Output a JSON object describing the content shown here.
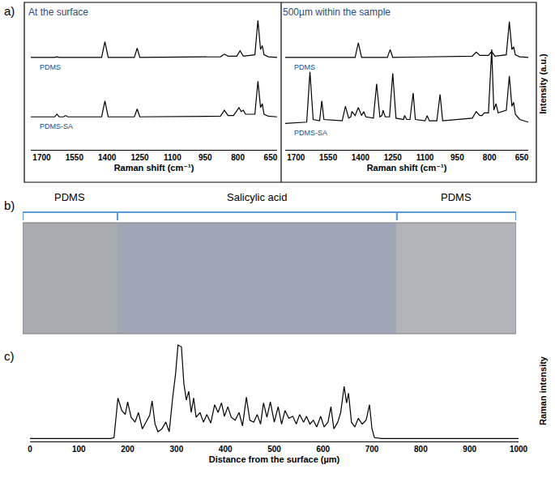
{
  "chart_data": [
    {
      "type": "line",
      "annotations": [
        "a)"
      ],
      "title": "At the surface",
      "x_label": "Raman shift (cm⁻¹)",
      "xlim": [
        1750,
        620
      ],
      "xticks": [
        1700,
        1550,
        1400,
        1250,
        1100,
        950,
        800,
        650
      ],
      "ylim": [
        0,
        10
      ],
      "tick_labels": "x",
      "grid": false,
      "series": [
        {
          "name": "PDMS",
          "color": "#000000",
          "x": [
            1750,
            1640,
            1630,
            1620,
            1425,
            1410,
            1395,
            1275,
            1262,
            1250,
            880,
            862,
            845,
            805,
            790,
            775,
            722,
            708,
            696,
            688,
            680,
            660,
            620
          ],
          "values": [
            7.0,
            7.0,
            7.05,
            7.0,
            7.0,
            8.2,
            7.0,
            7.0,
            7.7,
            7.0,
            7.05,
            7.25,
            7.1,
            7.1,
            7.5,
            7.1,
            7.2,
            9.8,
            7.6,
            7.9,
            7.2,
            7.05,
            7.0
          ]
        },
        {
          "name": "PDMS-SA",
          "color": "#000000",
          "x": [
            1750,
            1640,
            1630,
            1620,
            1600,
            1590,
            1580,
            1425,
            1410,
            1395,
            1275,
            1262,
            1250,
            880,
            862,
            845,
            820,
            805,
            795,
            785,
            775,
            765,
            722,
            708,
            696,
            688,
            680,
            660,
            620
          ],
          "values": [
            2.5,
            2.5,
            2.7,
            2.5,
            2.5,
            2.6,
            2.5,
            2.5,
            3.7,
            2.5,
            2.5,
            3.1,
            2.5,
            2.55,
            3.0,
            2.6,
            2.6,
            3.0,
            3.2,
            2.9,
            3.0,
            2.7,
            2.7,
            5.2,
            3.2,
            3.5,
            2.7,
            2.55,
            2.5
          ]
        }
      ]
    },
    {
      "type": "line",
      "title": "500µm within the sample",
      "x_label": "Raman shift (cm⁻¹)",
      "y_label": "Intensity (a.u.)",
      "xlim": [
        1750,
        620
      ],
      "xticks": [
        1700,
        1550,
        1400,
        1250,
        1100,
        950,
        800,
        650
      ],
      "ylim": [
        0,
        10
      ],
      "tick_labels": "x",
      "grid": false,
      "series": [
        {
          "name": "PDMS",
          "color": "#000000",
          "x": [
            1750,
            1640,
            1630,
            1620,
            1425,
            1410,
            1395,
            1275,
            1262,
            1250,
            880,
            862,
            845,
            805,
            790,
            775,
            722,
            708,
            696,
            688,
            680,
            660,
            620
          ],
          "values": [
            7.0,
            7.0,
            7.0,
            7.0,
            7.0,
            8.1,
            7.0,
            7.0,
            7.6,
            7.0,
            7.1,
            7.4,
            7.15,
            7.15,
            7.45,
            7.1,
            7.2,
            9.7,
            7.6,
            7.8,
            7.2,
            7.05,
            7.0
          ]
        },
        {
          "name": "PDMS-SA",
          "color": "#000000",
          "x": [
            1750,
            1650,
            1635,
            1620,
            1590,
            1580,
            1570,
            1485,
            1470,
            1455,
            1445,
            1440,
            1425,
            1410,
            1395,
            1385,
            1375,
            1340,
            1325,
            1310,
            1300,
            1295,
            1285,
            1265,
            1250,
            1235,
            1200,
            1195,
            1185,
            1170,
            1155,
            1145,
            1100,
            1090,
            1080,
            1045,
            1030,
            1018,
            880,
            862,
            845,
            835,
            825,
            805,
            790,
            780,
            770,
            760,
            722,
            708,
            696,
            688,
            680,
            660,
            620
          ],
          "values": [
            2.0,
            2.1,
            5.9,
            2.3,
            2.2,
            3.7,
            2.3,
            2.2,
            3.3,
            2.4,
            2.5,
            2.9,
            2.6,
            3.2,
            2.6,
            2.9,
            2.5,
            2.4,
            5.0,
            2.5,
            2.6,
            3.0,
            2.5,
            2.5,
            5.8,
            2.4,
            2.3,
            2.6,
            2.3,
            2.3,
            4.3,
            2.3,
            2.2,
            2.6,
            2.2,
            2.2,
            4.2,
            2.2,
            2.4,
            2.9,
            2.6,
            2.6,
            2.8,
            2.8,
            7.6,
            3.0,
            3.5,
            2.8,
            3.0,
            5.6,
            3.3,
            3.6,
            2.7,
            2.3,
            2.1
          ]
        }
      ]
    },
    {
      "type": "image_bands",
      "annotations": [
        "b)"
      ],
      "xlim": [
        -15,
        995
      ],
      "tick_labels": false,
      "bands": [
        {
          "label": "PDMS",
          "start": -15,
          "end": 179,
          "color": "#a9abb0"
        },
        {
          "label": "Salicylic acid",
          "start": 179,
          "end": 751,
          "color": "#9fa6b6"
        },
        {
          "label": "PDMS",
          "start": 751,
          "end": 995,
          "color": "#b2b4b9"
        }
      ]
    },
    {
      "type": "line",
      "annotations": [
        "c)"
      ],
      "x_label": "Distance from the surface (µm)",
      "y_label": "Raman intensity",
      "xlim": [
        0,
        1000
      ],
      "xticks": [
        0,
        100,
        200,
        300,
        400,
        500,
        600,
        700,
        800,
        900,
        1000
      ],
      "ylim": [
        0,
        10.5
      ],
      "tick_labels": "x",
      "grid": false,
      "color": "#000000",
      "x": [
        0,
        165,
        172,
        180,
        188,
        195,
        200,
        207,
        215,
        222,
        230,
        238,
        245,
        250,
        256,
        262,
        270,
        278,
        285,
        292,
        298,
        303,
        310,
        315,
        320,
        325,
        330,
        335,
        340,
        348,
        355,
        362,
        370,
        378,
        385,
        392,
        398,
        405,
        412,
        420,
        428,
        435,
        443,
        450,
        458,
        465,
        472,
        478,
        485,
        492,
        500,
        508,
        515,
        522,
        530,
        538,
        545,
        552,
        560,
        566,
        573,
        580,
        587,
        595,
        602,
        610,
        616,
        622,
        630,
        636,
        643,
        648,
        652,
        658,
        665,
        672,
        680,
        688,
        695,
        700,
        705,
        720,
        1000
      ],
      "values": [
        0.3,
        0.3,
        0.4,
        4.5,
        3.2,
        2.8,
        4.1,
        2.5,
        2.0,
        3.0,
        1.3,
        2.0,
        2.7,
        4.2,
        1.8,
        1.0,
        1.3,
        2.0,
        1.0,
        4.5,
        7.0,
        10.0,
        9.8,
        6.0,
        4.3,
        5.2,
        3.0,
        4.5,
        2.5,
        3.0,
        2.0,
        2.8,
        1.9,
        3.8,
        3.0,
        4.0,
        2.6,
        3.6,
        2.5,
        2.2,
        3.0,
        1.6,
        4.6,
        2.2,
        2.0,
        2.8,
        1.8,
        4.0,
        2.5,
        4.1,
        2.0,
        3.6,
        1.8,
        3.2,
        2.4,
        2.6,
        1.8,
        2.8,
        2.0,
        2.6,
        1.8,
        2.2,
        1.5,
        2.6,
        1.5,
        2.0,
        3.6,
        1.3,
        2.0,
        3.0,
        5.7,
        4.0,
        5.0,
        2.0,
        1.5,
        2.4,
        1.8,
        2.2,
        3.8,
        1.3,
        0.4,
        0.3,
        0.3
      ]
    }
  ]
}
